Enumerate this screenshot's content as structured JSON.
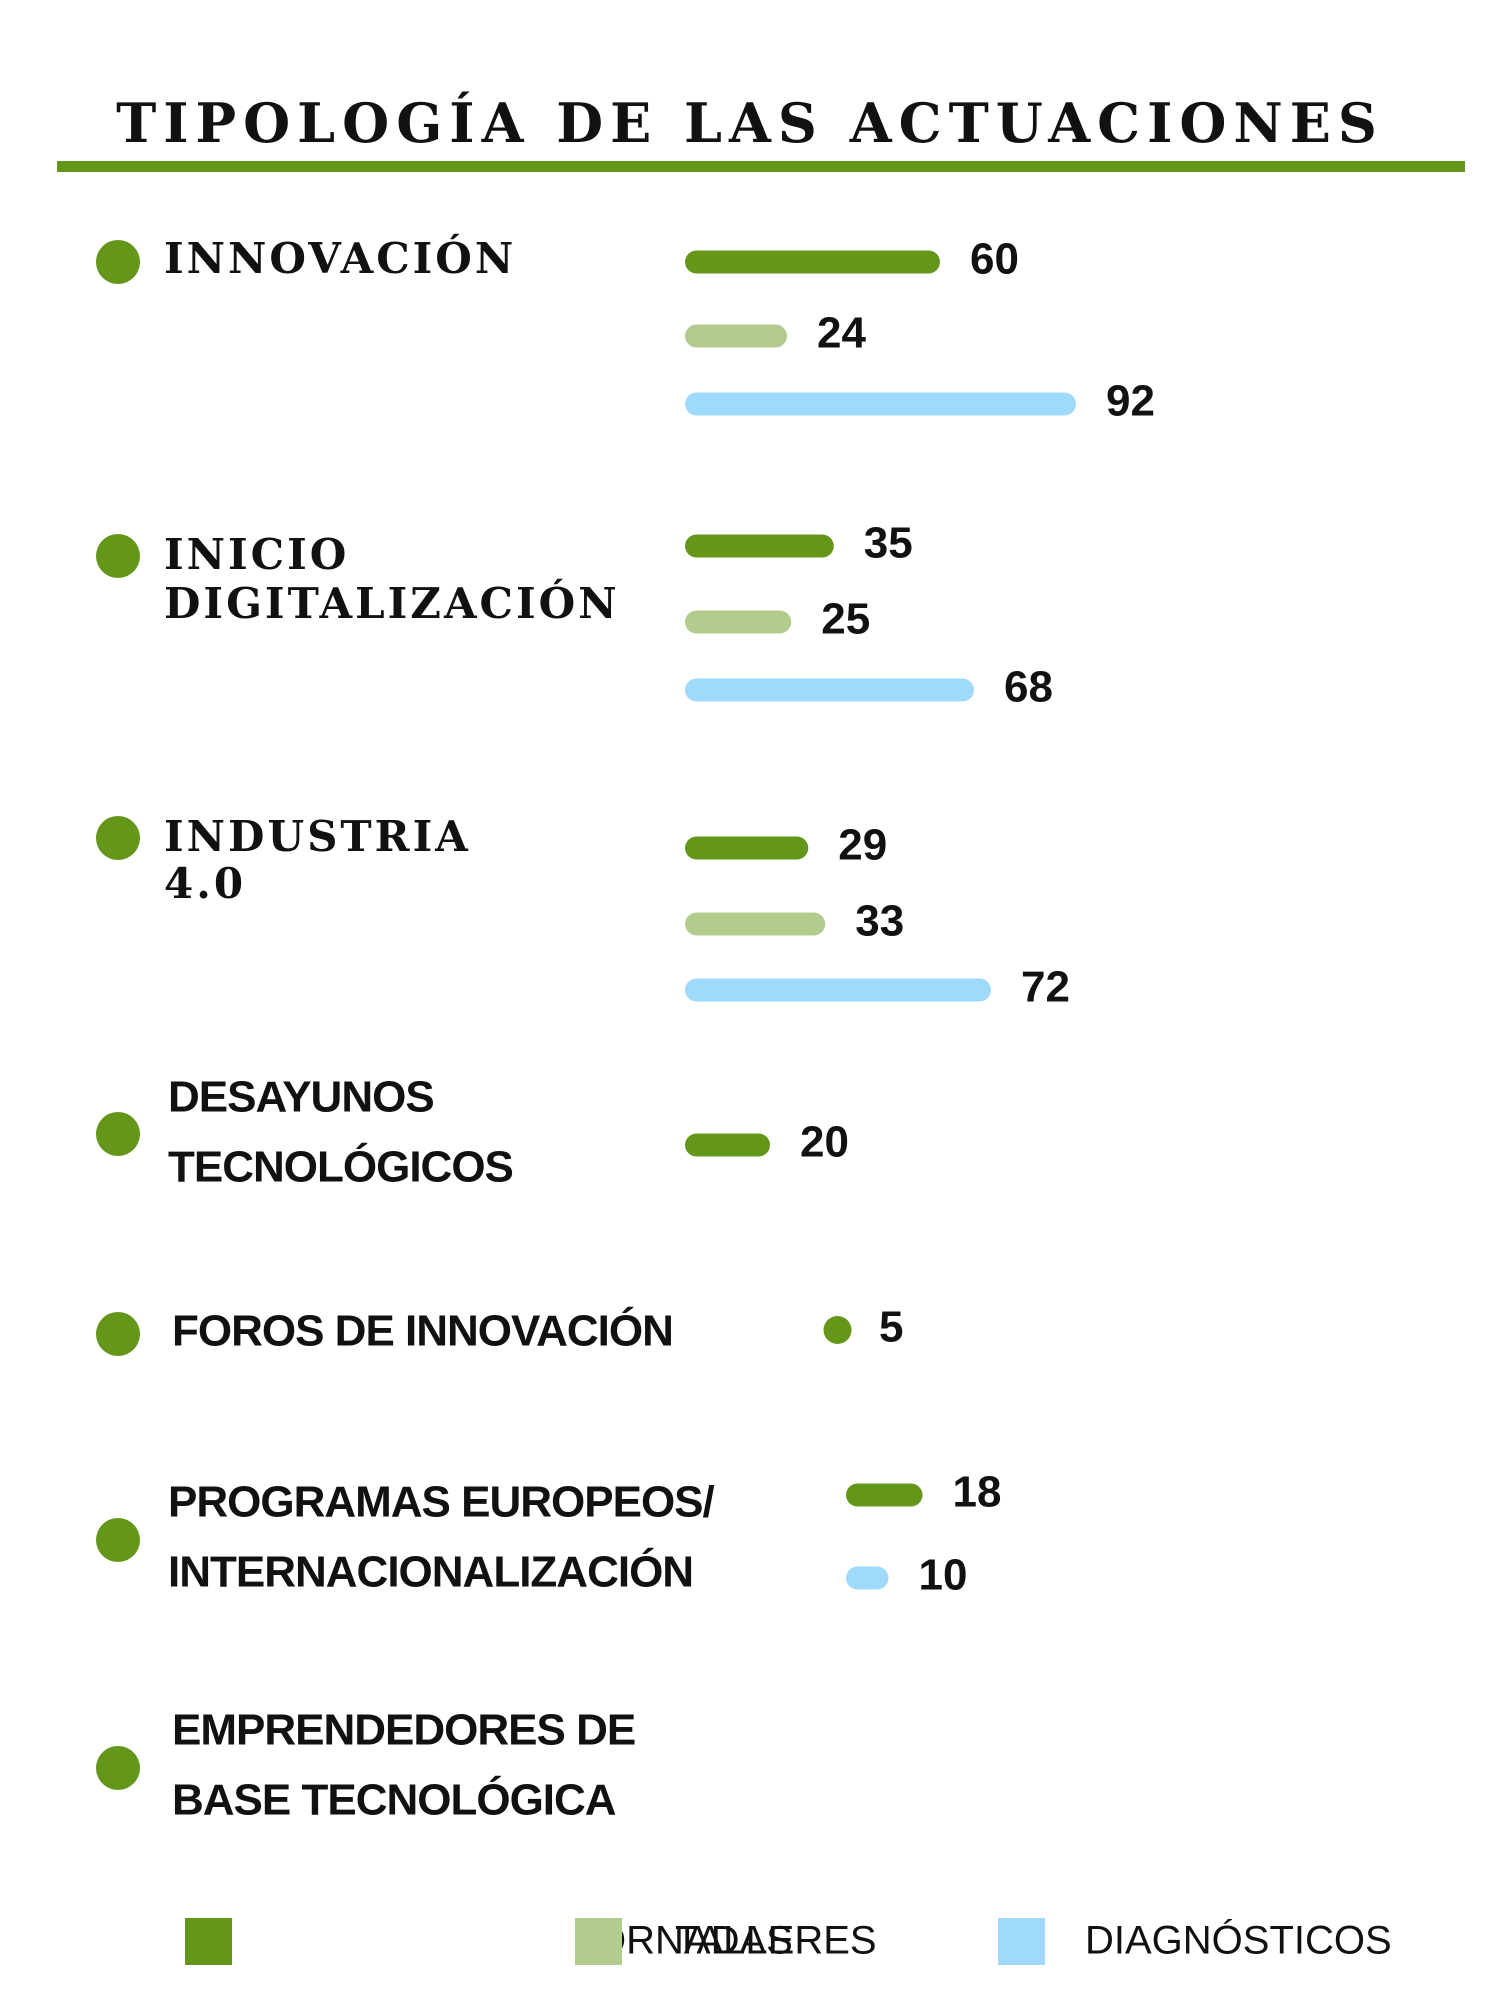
{
  "chart_data": {
    "type": "bar",
    "title": "TIPOLOGÍA DE LAS ACTUACIONES",
    "categories": [
      [
        "INNOVACIÓN"
      ],
      [
        "INICIO",
        "DIGITALIZACIÓN"
      ],
      [
        "INDUSTRIA",
        "4.0"
      ],
      [
        "DESAYUNOS",
        "TECNOLÓGICOS"
      ],
      [
        "FOROS DE INNOVACIÓN"
      ],
      [
        "PROGRAMAS EUROPEOS/",
        "INTERNACIONALIZACIÓN"
      ],
      [
        "EMPRENDEDORES DE",
        "BASE TECNOLÓGICA"
      ]
    ],
    "series": [
      {
        "name": "JORNADAS",
        "color": "#64961a",
        "values": [
          60,
          35,
          29,
          20,
          5,
          18,
          null
        ]
      },
      {
        "name": "TALLERES",
        "color": "#b1cc8c",
        "values": [
          24,
          25,
          33,
          null,
          null,
          null,
          null
        ]
      },
      {
        "name": "DIAGNÓSTICOS",
        "color": "#9fd9fb",
        "values": [
          92,
          68,
          72,
          null,
          null,
          10,
          null
        ]
      }
    ],
    "legend_position": "bottom",
    "grid": false,
    "xlim": [
      0,
      92
    ]
  },
  "colors": {
    "accent": "#64961a",
    "rule": "#64961a",
    "text": "#111111"
  }
}
